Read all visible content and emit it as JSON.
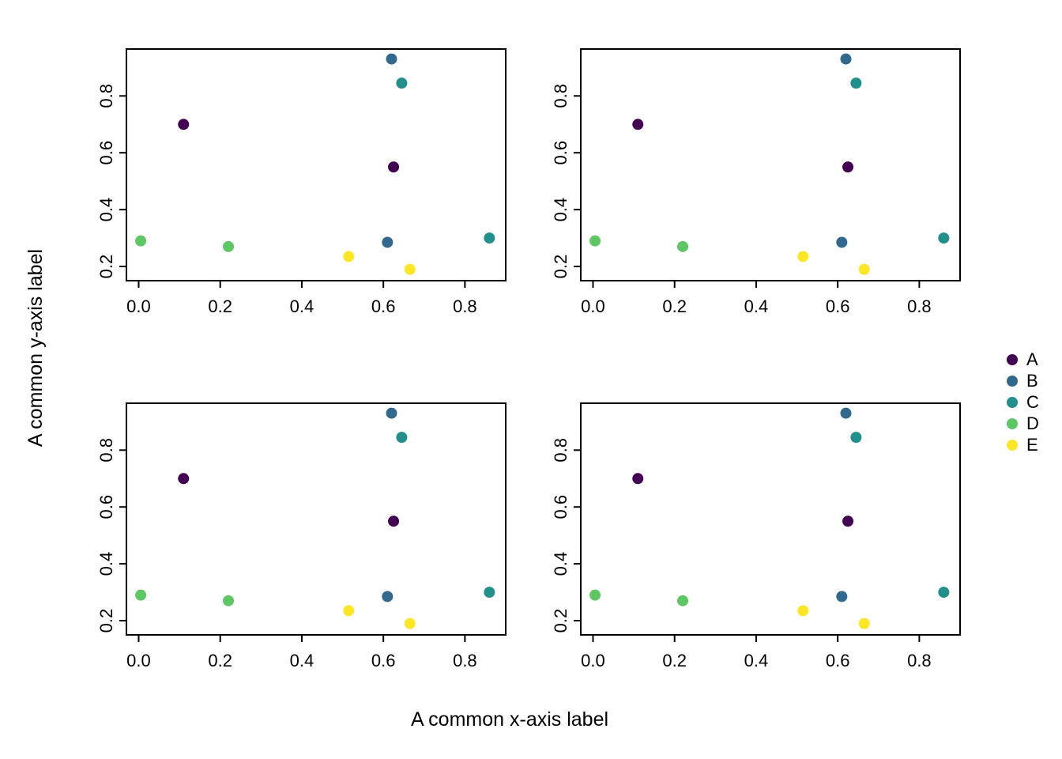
{
  "figure": {
    "background": "#ffffff",
    "x_axis_label": "A common x-axis label",
    "y_axis_label": "A common y-axis label"
  },
  "legend": {
    "position": "right-center",
    "items": [
      {
        "label": "A",
        "color": "#440154"
      },
      {
        "label": "B",
        "color": "#31688E"
      },
      {
        "label": "C",
        "color": "#21908C"
      },
      {
        "label": "D",
        "color": "#5DC863"
      },
      {
        "label": "E",
        "color": "#FDE725"
      }
    ]
  },
  "chart_data": {
    "type": "scatter",
    "layout": "2x2 grid of four identical scatter panels sharing common axis labels",
    "panels": 4,
    "title": "",
    "xlabel": "A common x-axis label",
    "ylabel": "A common y-axis label",
    "xlim": [
      -0.03,
      0.9
    ],
    "ylim": [
      0.15,
      0.965
    ],
    "x_ticks": [
      0.0,
      0.2,
      0.4,
      0.6,
      0.8
    ],
    "y_ticks": [
      0.2,
      0.4,
      0.6,
      0.8
    ],
    "grid": false,
    "point_style": "filled circle",
    "series": [
      {
        "name": "A",
        "color": "#440154",
        "points": [
          [
            0.11,
            0.7
          ],
          [
            0.625,
            0.55
          ]
        ]
      },
      {
        "name": "B",
        "color": "#31688E",
        "points": [
          [
            0.62,
            0.93
          ],
          [
            0.61,
            0.285
          ]
        ]
      },
      {
        "name": "C",
        "color": "#21908C",
        "points": [
          [
            0.645,
            0.845
          ],
          [
            0.86,
            0.3
          ]
        ]
      },
      {
        "name": "D",
        "color": "#5DC863",
        "points": [
          [
            0.005,
            0.29
          ],
          [
            0.22,
            0.27
          ]
        ]
      },
      {
        "name": "E",
        "color": "#FDE725",
        "points": [
          [
            0.515,
            0.235
          ],
          [
            0.665,
            0.19
          ]
        ]
      }
    ]
  }
}
